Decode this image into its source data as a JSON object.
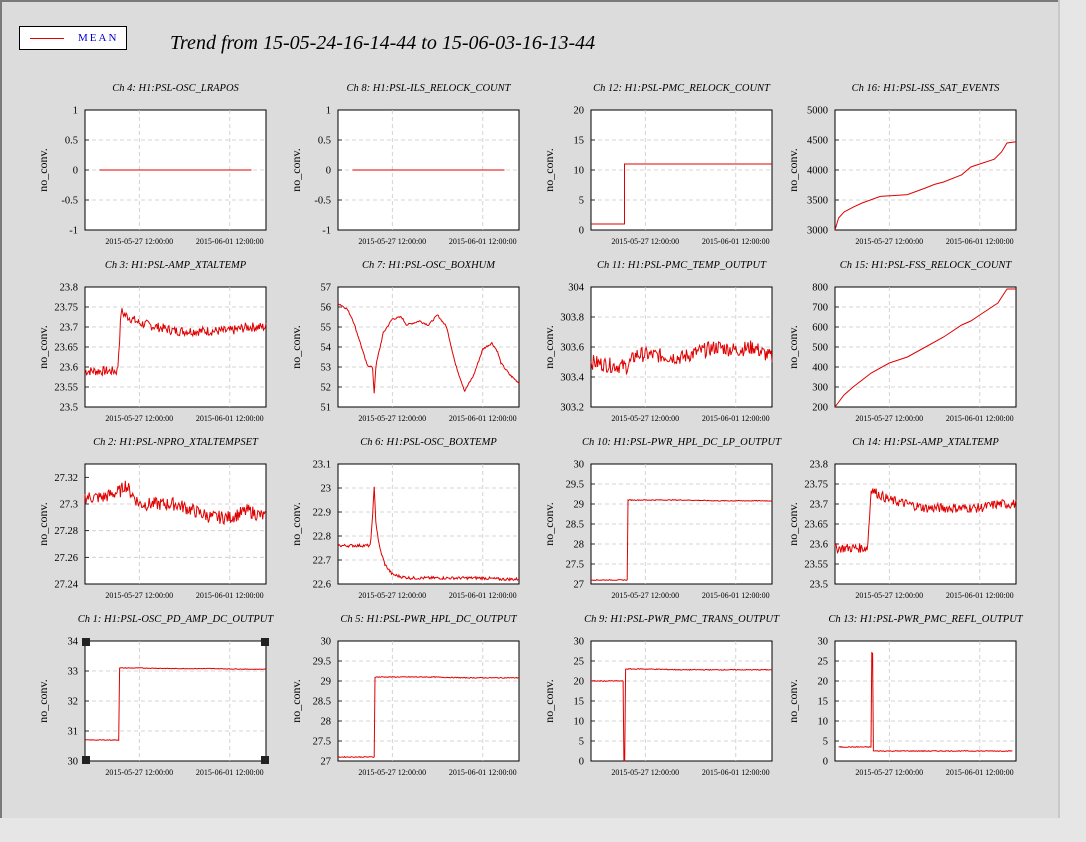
{
  "page_title": "Trend from 15-05-24-16-14-44 to 15-06-03-16-13-44",
  "legend": {
    "label": "MEAN",
    "line_color": "#e00000"
  },
  "common": {
    "ylabel": "no_conv.",
    "xticks": [
      "2015-05-27 12:00:00",
      "2015-06-01 12:00:00"
    ],
    "xtick_fractions": [
      0.3,
      0.8
    ],
    "series_color": "#e00000"
  },
  "chart_data": [
    {
      "type": "line",
      "title": "Ch 4: H1:PSL-OSC_LRAPOS",
      "ylim": [
        -1,
        1
      ],
      "yticks": [
        "-1",
        "-0.5",
        "0",
        "0.5",
        "1"
      ],
      "x": [
        0.08,
        0.92
      ],
      "values": [
        0,
        0
      ],
      "xrange": [
        0.08,
        0.92
      ]
    },
    {
      "type": "line",
      "title": "Ch 8: H1:PSL-ILS_RELOCK_COUNT",
      "ylim": [
        -1,
        1
      ],
      "yticks": [
        "-1",
        "-0.5",
        "0",
        "0.5",
        "1"
      ],
      "x": [
        0.08,
        0.92
      ],
      "values": [
        0,
        0
      ],
      "xrange": [
        0.08,
        0.92
      ]
    },
    {
      "type": "line",
      "title": "Ch 12: H1:PSL-PMC_RELOCK_COUNT",
      "ylim": [
        0,
        20
      ],
      "yticks": [
        "0",
        "5",
        "10",
        "15",
        "20"
      ],
      "x": [
        0,
        0.185,
        0.185,
        1
      ],
      "values": [
        1,
        1,
        11,
        11
      ]
    },
    {
      "type": "line",
      "title": "Ch 16: H1:PSL-ISS_SAT_EVENTS",
      "ylim": [
        3000,
        5000
      ],
      "yticks": [
        "3000",
        "3500",
        "4000",
        "4500",
        "5000"
      ],
      "x": [
        0,
        0.02,
        0.05,
        0.1,
        0.15,
        0.25,
        0.4,
        0.5,
        0.55,
        0.6,
        0.7,
        0.75,
        0.8,
        0.88,
        0.92,
        0.95,
        1
      ],
      "values": [
        3000,
        3200,
        3300,
        3380,
        3450,
        3560,
        3590,
        3700,
        3760,
        3800,
        3920,
        4050,
        4100,
        4180,
        4300,
        4450,
        4470
      ]
    },
    {
      "type": "line",
      "title": "Ch 3: H1:PSL-AMP_XTALTEMP",
      "ylim": [
        23.5,
        23.8
      ],
      "yticks": [
        "23.5",
        "23.55",
        "23.6",
        "23.65",
        "23.7",
        "23.75",
        "23.8"
      ],
      "x": [
        0,
        0.18,
        0.2,
        0.22,
        0.3,
        0.4,
        0.5,
        0.6,
        0.7,
        0.8,
        0.9,
        1
      ],
      "values": [
        23.59,
        23.59,
        23.74,
        23.73,
        23.71,
        23.7,
        23.69,
        23.69,
        23.69,
        23.69,
        23.7,
        23.7
      ],
      "noise": 0.012
    },
    {
      "type": "line",
      "title": "Ch 7: H1:PSL-OSC_BOXHUM",
      "ylim": [
        51,
        57
      ],
      "yticks": [
        "51",
        "52",
        "53",
        "54",
        "55",
        "56",
        "57"
      ],
      "x": [
        0,
        0.05,
        0.08,
        0.12,
        0.16,
        0.19,
        0.2,
        0.21,
        0.25,
        0.3,
        0.35,
        0.38,
        0.45,
        0.5,
        0.55,
        0.6,
        0.65,
        0.7,
        0.75,
        0.8,
        0.85,
        0.88,
        0.9,
        0.95,
        1
      ],
      "values": [
        56.2,
        55.9,
        55.4,
        54.3,
        53.1,
        53.0,
        51.7,
        53.1,
        54.7,
        55.4,
        55.5,
        55.1,
        55.3,
        55.1,
        55.6,
        55.0,
        53.1,
        51.8,
        52.6,
        53.9,
        54.2,
        53.8,
        53.2,
        52.6,
        52.2
      ],
      "noise": 0.05
    },
    {
      "type": "line",
      "title": "Ch 11: H1:PSL-PMC_TEMP_OUTPUT",
      "ylim": [
        303.2,
        304
      ],
      "yticks": [
        "303.2",
        "303.4",
        "303.6",
        "303.8",
        "304"
      ],
      "x": [
        0,
        0.1,
        0.2,
        0.25,
        0.3,
        0.4,
        0.5,
        0.6,
        0.7,
        0.8,
        0.9,
        0.95,
        1
      ],
      "values": [
        303.5,
        303.48,
        303.47,
        303.55,
        303.55,
        303.54,
        303.53,
        303.57,
        303.6,
        303.58,
        303.6,
        303.56,
        303.53
      ],
      "noise": 0.05
    },
    {
      "type": "line",
      "title": "Ch 15: H1:PSL-FSS_RELOCK_COUNT",
      "ylim": [
        200,
        800
      ],
      "yticks": [
        "200",
        "300",
        "400",
        "500",
        "600",
        "700",
        "800"
      ],
      "x": [
        0,
        0.05,
        0.1,
        0.2,
        0.3,
        0.4,
        0.5,
        0.6,
        0.7,
        0.75,
        0.8,
        0.9,
        0.95,
        1
      ],
      "values": [
        200,
        260,
        300,
        370,
        420,
        450,
        500,
        550,
        610,
        630,
        660,
        720,
        790,
        790
      ]
    },
    {
      "type": "line",
      "title": "Ch 2: H1:PSL-NPRO_XTALTEMPSET",
      "ylim": [
        27.24,
        27.33
      ],
      "yticks": [
        "27.24",
        "27.26",
        "27.28",
        "27.3",
        "27.32"
      ],
      "x": [
        0,
        0.1,
        0.2,
        0.22,
        0.3,
        0.4,
        0.5,
        0.6,
        0.7,
        0.8,
        0.9,
        1
      ],
      "values": [
        27.305,
        27.305,
        27.31,
        27.315,
        27.3,
        27.3,
        27.3,
        27.295,
        27.29,
        27.29,
        27.295,
        27.29
      ],
      "noise": 0.005
    },
    {
      "type": "line",
      "title": "Ch 6: H1:PSL-OSC_BOXTEMP",
      "ylim": [
        22.6,
        23.1
      ],
      "yticks": [
        "22.6",
        "22.7",
        "22.8",
        "22.9",
        "23",
        "23.1"
      ],
      "x": [
        0,
        0.18,
        0.2,
        0.21,
        0.23,
        0.26,
        0.3,
        0.35,
        0.4,
        0.5,
        0.6,
        0.7,
        0.8,
        0.9,
        1
      ],
      "values": [
        22.76,
        22.76,
        23.0,
        22.85,
        22.75,
        22.68,
        22.64,
        22.63,
        22.625,
        22.625,
        22.625,
        22.625,
        22.625,
        22.62,
        22.62
      ],
      "noise": 0.006
    },
    {
      "type": "line",
      "title": "Ch 10: H1:PSL-PWR_HPL_DC_LP_OUTPUT",
      "ylim": [
        27,
        30
      ],
      "yticks": [
        "27",
        "27.5",
        "28",
        "28.5",
        "29",
        "29.5",
        "30"
      ],
      "x": [
        0,
        0.2,
        0.2,
        0.3,
        0.5,
        0.7,
        0.9,
        1
      ],
      "values": [
        27.1,
        27.1,
        29.1,
        29.1,
        29.1,
        29.08,
        29.08,
        29.08
      ],
      "noise": 0.01
    },
    {
      "type": "line",
      "title": "Ch 14: H1:PSL-AMP_XTALTEMP",
      "ylim": [
        23.5,
        23.8
      ],
      "yticks": [
        "23.5",
        "23.55",
        "23.6",
        "23.65",
        "23.7",
        "23.75",
        "23.8"
      ],
      "x": [
        0,
        0.18,
        0.2,
        0.22,
        0.3,
        0.4,
        0.5,
        0.6,
        0.7,
        0.8,
        0.9,
        1
      ],
      "values": [
        23.59,
        23.59,
        23.74,
        23.73,
        23.71,
        23.7,
        23.69,
        23.69,
        23.69,
        23.69,
        23.7,
        23.7
      ],
      "noise": 0.012
    },
    {
      "type": "line",
      "title": "Ch 1: H1:PSL-OSC_PD_AMP_DC_OUTPUT",
      "ylim": [
        30,
        34
      ],
      "yticks": [
        "30",
        "31",
        "32",
        "33",
        "34"
      ],
      "x": [
        0,
        0.19,
        0.19,
        0.3,
        0.5,
        0.7,
        0.9,
        1
      ],
      "values": [
        30.7,
        30.7,
        33.1,
        33.1,
        33.08,
        33.08,
        33.06,
        33.06
      ],
      "noise": 0.01
    },
    {
      "type": "line",
      "title": "Ch 5: H1:PSL-PWR_HPL_DC_OUTPUT",
      "ylim": [
        27,
        30
      ],
      "yticks": [
        "27",
        "27.5",
        "28",
        "28.5",
        "29",
        "29.5",
        "30"
      ],
      "x": [
        0,
        0.2,
        0.2,
        0.3,
        0.5,
        0.7,
        0.9,
        1
      ],
      "values": [
        27.1,
        27.1,
        29.1,
        29.1,
        29.1,
        29.08,
        29.08,
        29.08
      ],
      "noise": 0.01
    },
    {
      "type": "line",
      "title": "Ch 9: H1:PSL-PWR_PMC_TRANS_OUTPUT",
      "ylim": [
        0,
        30
      ],
      "yticks": [
        "0",
        "5",
        "10",
        "15",
        "20",
        "25",
        "30"
      ],
      "x": [
        0,
        0.18,
        0.18,
        0.19,
        0.19,
        0.3,
        0.5,
        0.7,
        0.9,
        1
      ],
      "values": [
        20,
        20,
        0,
        0,
        23,
        23,
        22.8,
        22.8,
        22.8,
        22.8
      ],
      "noise": 0.1
    },
    {
      "type": "line",
      "title": "Ch 13: H1:PSL-PWR_PMC_REFL_OUTPUT",
      "ylim": [
        0,
        30
      ],
      "yticks": [
        "0",
        "5",
        "10",
        "15",
        "20",
        "25",
        "30"
      ],
      "x": [
        0.02,
        0.2,
        0.2,
        0.21,
        0.21,
        0.3,
        0.5,
        0.7,
        0.9,
        0.98
      ],
      "values": [
        3.5,
        3.5,
        27,
        27,
        2.5,
        2.5,
        2.5,
        2.5,
        2.5,
        2.5
      ],
      "noise": 0.1
    }
  ]
}
